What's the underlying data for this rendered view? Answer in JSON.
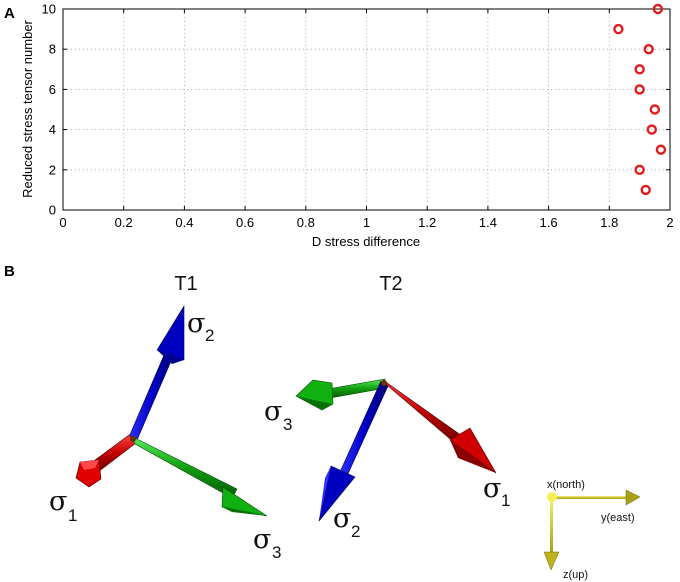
{
  "panel_a": {
    "letter": "A"
  },
  "panel_b": {
    "letter": "B"
  },
  "chart_data": {
    "type": "scatter",
    "xlabel": "D stress difference",
    "ylabel": "Reduced stress tensor number",
    "xlim": [
      0,
      2
    ],
    "ylim": [
      0,
      10
    ],
    "x_ticks": [
      "0",
      "0.2",
      "0.4",
      "0.6",
      "0.8",
      "1",
      "1.2",
      "1.4",
      "1.6",
      "1.8",
      "2"
    ],
    "y_ticks": [
      "0",
      "2",
      "4",
      "6",
      "8",
      "10"
    ],
    "grid": true,
    "marker": "circle",
    "color": "#e41a1c",
    "points": [
      {
        "x": 1.92,
        "y": 1
      },
      {
        "x": 1.9,
        "y": 2
      },
      {
        "x": 1.97,
        "y": 3
      },
      {
        "x": 1.94,
        "y": 4
      },
      {
        "x": 1.95,
        "y": 5
      },
      {
        "x": 1.9,
        "y": 6
      },
      {
        "x": 1.9,
        "y": 7
      },
      {
        "x": 1.93,
        "y": 8
      },
      {
        "x": 1.83,
        "y": 9
      },
      {
        "x": 1.96,
        "y": 10
      }
    ]
  },
  "tensors": [
    {
      "title": "T1",
      "axes": [
        {
          "symbol": "σ",
          "sub": "1",
          "color": "red"
        },
        {
          "symbol": "σ",
          "sub": "2",
          "color": "blue"
        },
        {
          "symbol": "σ",
          "sub": "3",
          "color": "green"
        }
      ]
    },
    {
      "title": "T2",
      "axes": [
        {
          "symbol": "σ",
          "sub": "1",
          "color": "red"
        },
        {
          "symbol": "σ",
          "sub": "2",
          "color": "blue"
        },
        {
          "symbol": "σ",
          "sub": "3",
          "color": "green"
        }
      ]
    }
  ],
  "orientation_axes": {
    "north": "x(north)",
    "east": "y(east)",
    "up": "z(up)",
    "color": "yellow"
  }
}
